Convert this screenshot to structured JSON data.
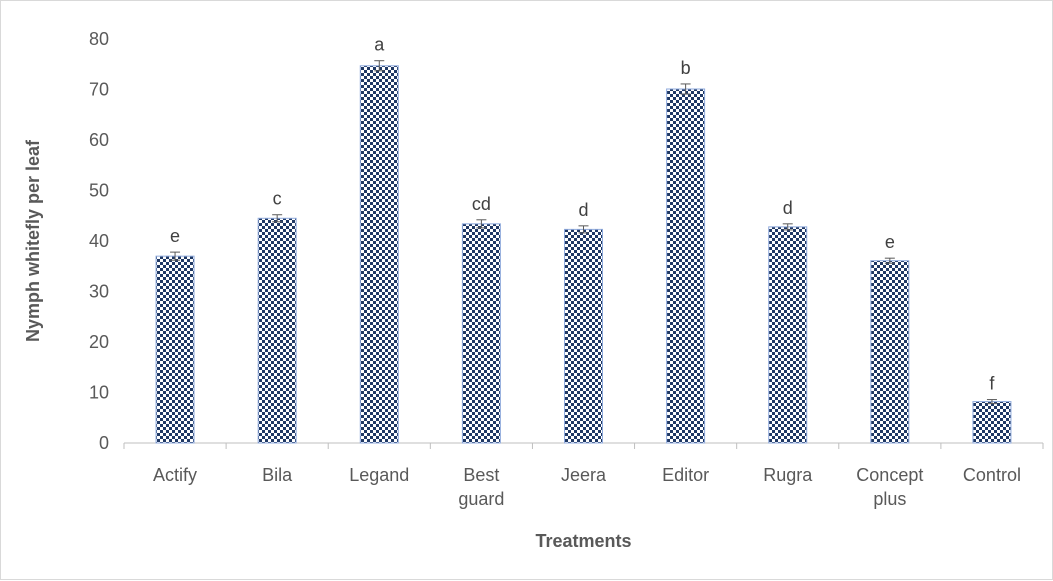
{
  "chart_data": {
    "type": "bar",
    "title": "",
    "xlabel": "Treatments",
    "ylabel": "Nymph whitefly per leaf",
    "ylim": [
      0,
      80
    ],
    "yticks": [
      0,
      10,
      20,
      30,
      40,
      50,
      60,
      70,
      80
    ],
    "grid": false,
    "legend": "none",
    "categories": [
      [
        "Actify"
      ],
      [
        "Bila"
      ],
      [
        "Legand"
      ],
      [
        "Best",
        "guard"
      ],
      [
        "Jeera"
      ],
      [
        "Editor"
      ],
      [
        "Rugra"
      ],
      [
        "Concept",
        "plus"
      ],
      [
        "Control"
      ]
    ],
    "values": [
      37,
      44.5,
      74.7,
      43.4,
      42.3,
      70.1,
      42.8,
      36.1,
      8.2
    ],
    "errors": [
      0.8,
      0.7,
      1.0,
      0.8,
      0.7,
      1.0,
      0.6,
      0.5,
      0.4
    ],
    "significance_letters": [
      "e",
      "c",
      "a",
      "cd",
      "d",
      "b",
      "d",
      "e",
      "f"
    ],
    "colors": {
      "bar_fill_base": "#ffffff",
      "bar_pattern": "#1f3864",
      "bar_border": "#8faadc",
      "error_bar": "#595959",
      "axis_line": "#bfbfbf",
      "text": "#595959"
    }
  }
}
